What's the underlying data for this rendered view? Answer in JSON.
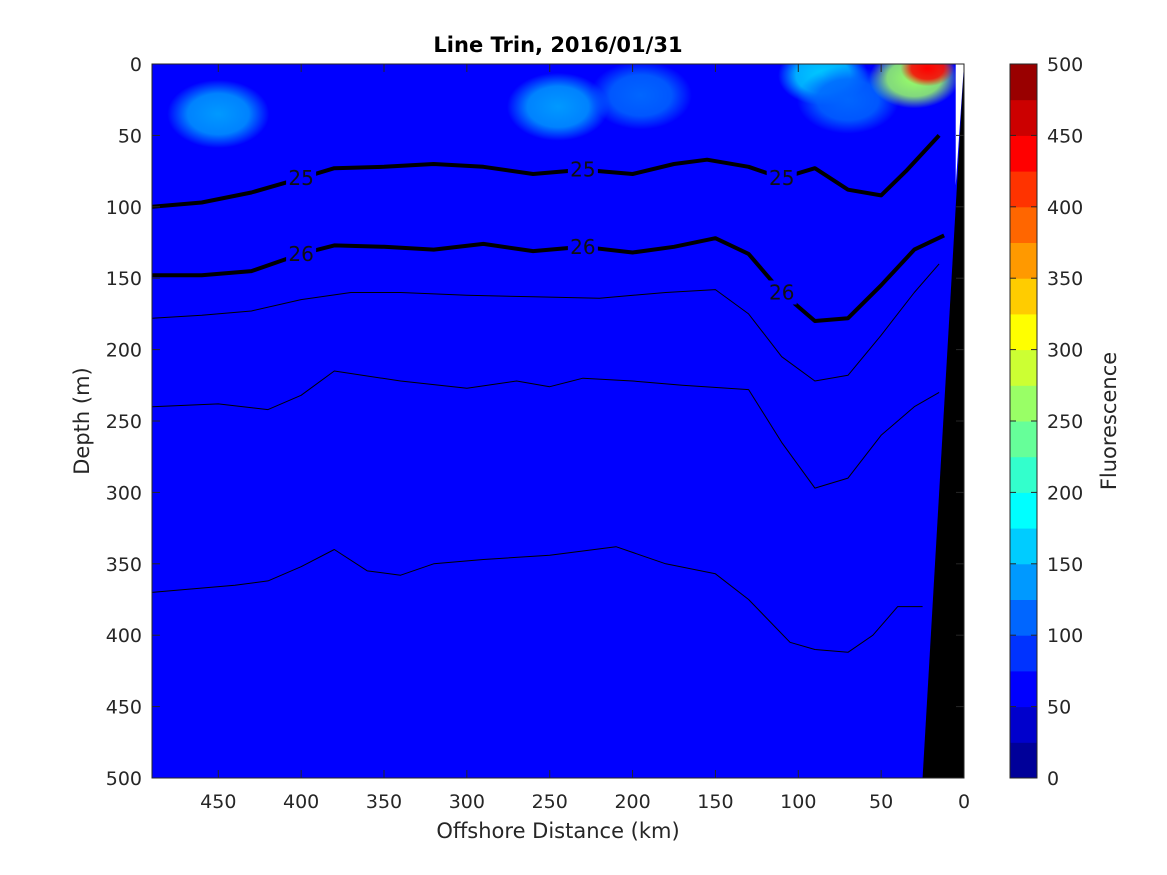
{
  "chart_data": {
    "type": "heatmap",
    "title": "Line Trin, 2016/01/31",
    "xlabel": "Offshore Distance (km)",
    "ylabel": "Depth (m)",
    "xlim": [
      490,
      0
    ],
    "ylim": [
      0,
      500
    ],
    "x_reversed": true,
    "y_reversed": true,
    "x_ticks": [
      450,
      400,
      350,
      300,
      250,
      200,
      150,
      100,
      50,
      0
    ],
    "y_ticks": [
      0,
      50,
      100,
      150,
      200,
      250,
      300,
      350,
      400,
      450,
      500
    ],
    "colorbar": {
      "label": "Fluorescence",
      "range": [
        0,
        500
      ],
      "ticks": [
        0,
        50,
        100,
        150,
        200,
        250,
        300,
        350,
        400,
        450,
        500
      ],
      "levels": 20,
      "colormap": "jet"
    },
    "background_fluorescence": 70,
    "fluorescence_patches": [
      {
        "x": 450,
        "y": 35,
        "value": 140
      },
      {
        "x": 245,
        "y": 30,
        "value": 130
      },
      {
        "x": 195,
        "y": 22,
        "value": 115
      },
      {
        "x": 85,
        "y": 8,
        "value": 170
      },
      {
        "x": 70,
        "y": 25,
        "value": 120
      },
      {
        "x": 30,
        "y": 10,
        "value": 250
      },
      {
        "x": 22,
        "y": 3,
        "value": 440
      }
    ],
    "density_contours": [
      {
        "label": "25",
        "bold": true,
        "points": [
          [
            490,
            100
          ],
          [
            460,
            97
          ],
          [
            430,
            90
          ],
          [
            400,
            80
          ],
          [
            380,
            73
          ],
          [
            350,
            72
          ],
          [
            320,
            70
          ],
          [
            290,
            72
          ],
          [
            260,
            77
          ],
          [
            230,
            74
          ],
          [
            200,
            77
          ],
          [
            175,
            70
          ],
          [
            155,
            67
          ],
          [
            130,
            72
          ],
          [
            110,
            80
          ],
          [
            90,
            73
          ],
          [
            70,
            88
          ],
          [
            50,
            92
          ],
          [
            35,
            75
          ],
          [
            15,
            50
          ]
        ]
      },
      {
        "label": "26",
        "bold": true,
        "points": [
          [
            490,
            148
          ],
          [
            460,
            148
          ],
          [
            430,
            145
          ],
          [
            400,
            133
          ],
          [
            380,
            127
          ],
          [
            350,
            128
          ],
          [
            320,
            130
          ],
          [
            290,
            126
          ],
          [
            260,
            131
          ],
          [
            230,
            128
          ],
          [
            200,
            132
          ],
          [
            175,
            128
          ],
          [
            150,
            122
          ],
          [
            130,
            133
          ],
          [
            110,
            160
          ],
          [
            90,
            180
          ],
          [
            70,
            178
          ],
          [
            50,
            155
          ],
          [
            30,
            130
          ],
          [
            12,
            120
          ]
        ]
      },
      {
        "label": "",
        "bold": false,
        "points": [
          [
            490,
            178
          ],
          [
            460,
            176
          ],
          [
            430,
            173
          ],
          [
            400,
            165
          ],
          [
            370,
            160
          ],
          [
            340,
            160
          ],
          [
            300,
            162
          ],
          [
            260,
            163
          ],
          [
            220,
            164
          ],
          [
            180,
            160
          ],
          [
            150,
            158
          ],
          [
            130,
            175
          ],
          [
            110,
            205
          ],
          [
            90,
            222
          ],
          [
            70,
            218
          ],
          [
            50,
            190
          ],
          [
            30,
            160
          ],
          [
            15,
            140
          ]
        ]
      },
      {
        "label": "",
        "bold": false,
        "points": [
          [
            490,
            240
          ],
          [
            450,
            238
          ],
          [
            420,
            242
          ],
          [
            400,
            232
          ],
          [
            380,
            215
          ],
          [
            340,
            222
          ],
          [
            300,
            227
          ],
          [
            270,
            222
          ],
          [
            250,
            226
          ],
          [
            230,
            220
          ],
          [
            200,
            222
          ],
          [
            170,
            225
          ],
          [
            130,
            228
          ],
          [
            110,
            265
          ],
          [
            90,
            297
          ],
          [
            70,
            290
          ],
          [
            50,
            260
          ],
          [
            30,
            240
          ],
          [
            15,
            230
          ]
        ]
      },
      {
        "label": "",
        "bold": false,
        "points": [
          [
            490,
            370
          ],
          [
            470,
            368
          ],
          [
            440,
            365
          ],
          [
            420,
            362
          ],
          [
            400,
            352
          ],
          [
            380,
            340
          ],
          [
            360,
            355
          ],
          [
            340,
            358
          ],
          [
            320,
            350
          ],
          [
            290,
            347
          ],
          [
            250,
            344
          ],
          [
            210,
            338
          ],
          [
            180,
            350
          ],
          [
            150,
            357
          ],
          [
            130,
            375
          ],
          [
            105,
            405
          ],
          [
            90,
            410
          ],
          [
            70,
            412
          ],
          [
            55,
            400
          ],
          [
            40,
            380
          ],
          [
            25,
            380
          ]
        ]
      }
    ],
    "bathymetry_top_x_km_at_500m": 25,
    "bathymetry_top_x_km_at_0m": 0
  }
}
